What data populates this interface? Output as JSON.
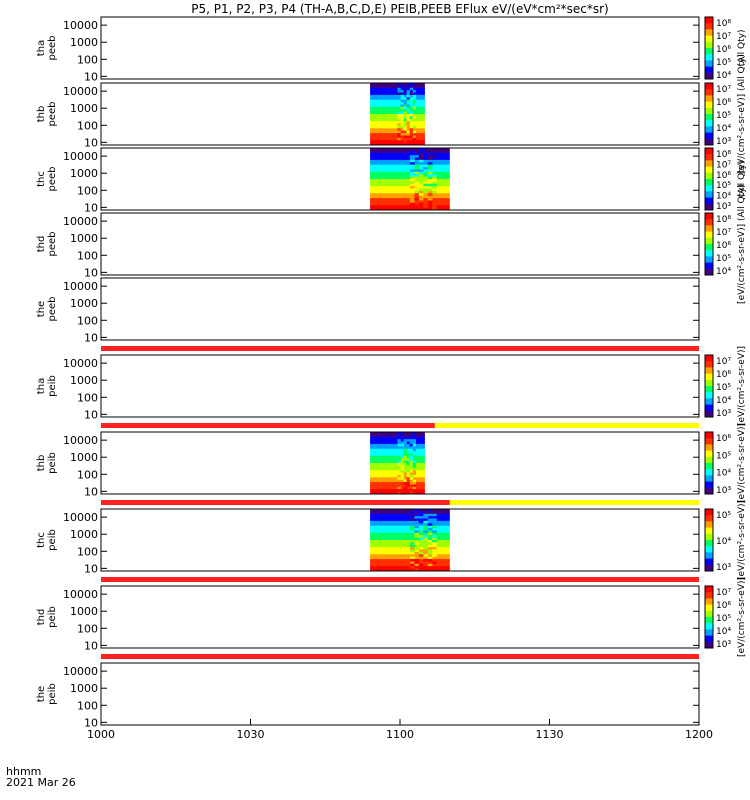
{
  "title": "P5, P1, P2, P3, P4 (TH-A,B,C,D,E) PEIB,PEEB EFlux eV/(eV*cm²*sec*sr)",
  "x_axis": {
    "label_lines": [
      "hhmm",
      "2021 Mar 26"
    ],
    "ticks": [
      "1000",
      "1030",
      "1100",
      "1130",
      "1200"
    ]
  },
  "colors": {
    "flag_red": "#ff2020",
    "flag_yellow": "#ffff00",
    "colormap": [
      "#40007f",
      "#0000ff",
      "#00a0ff",
      "#00ffff",
      "#00ff60",
      "#a0ff00",
      "#ffff00",
      "#ffa000",
      "#ff3000",
      "#ff0000"
    ]
  },
  "chart_data": {
    "type": "heatmap",
    "x_range_minutes_after_1000": [
      0,
      120
    ],
    "y_scale": "log",
    "y_range_eV": [
      7,
      30000
    ],
    "y_ticks": [
      "10000",
      "1000",
      "100",
      "10"
    ],
    "panels": [
      {
        "name": "tha peeb",
        "y_ticks": [
          "10000",
          "1000",
          "100",
          "10"
        ],
        "data_span_min": null,
        "colorbar": [
          "10⁸",
          "10⁷",
          "10⁶",
          "10⁵",
          "10⁴"
        ],
        "colorbar_label": "(All Qty)"
      },
      {
        "name": "thb peeb",
        "y_ticks": [
          "10000",
          "1000",
          "100",
          "10"
        ],
        "data_span_min": [
          54,
          65
        ],
        "colorbar": [
          "10⁷",
          "10⁶",
          "10⁵",
          "10⁴",
          "10³"
        ],
        "colorbar_label": "[eV/(cm²-s-sr-eV)] (All Qty)"
      },
      {
        "name": "thc peeb",
        "y_ticks": [
          "10000",
          "1000",
          "100",
          "10"
        ],
        "data_span_min": [
          54,
          70
        ],
        "colorbar": [
          "10⁸",
          "10⁷",
          "10⁶",
          "10⁵",
          "10⁴",
          "10³"
        ],
        "colorbar_label": "(All Qty)"
      },
      {
        "name": "thd peeb",
        "y_ticks": [
          "10000",
          "1000",
          "100",
          "10"
        ],
        "data_span_min": null,
        "colorbar": [
          "10⁸",
          "10⁷",
          "10⁶",
          "10⁵",
          "10⁴"
        ],
        "colorbar_label": "[eV/(cm²-s-sr-eV)] (All Qty)"
      },
      {
        "name": "the peeb",
        "y_ticks": [
          "10000",
          "1000",
          "100",
          "10"
        ],
        "data_span_min": null,
        "colorbar": [],
        "colorbar_label": ""
      },
      {
        "name": "tha peib",
        "y_ticks": [
          "10000",
          "1000",
          "100",
          "10"
        ],
        "data_span_min": null,
        "flag_above": {
          "red": [
            0,
            120
          ],
          "yellow": null
        },
        "colorbar": [
          "10⁷",
          "10⁶",
          "10⁵",
          "10⁴",
          "10³"
        ],
        "colorbar_label": "[eV/(cm²-s-sr-eV)]"
      },
      {
        "name": "thb peib",
        "y_ticks": [
          "10000",
          "1000",
          "100",
          "10"
        ],
        "data_span_min": [
          54,
          65
        ],
        "flag_above": {
          "red": [
            0,
            67
          ],
          "yellow": [
            67,
            120
          ]
        },
        "colorbar": [
          "10⁶",
          "10⁵",
          "10⁴",
          "10³"
        ],
        "colorbar_label": "[eV/(cm²-s-sr-eV)]"
      },
      {
        "name": "thc peib",
        "y_ticks": [
          "10000",
          "1000",
          "100",
          "10"
        ],
        "data_span_min": [
          54,
          70
        ],
        "flag_above": {
          "red": [
            0,
            70
          ],
          "yellow": [
            70,
            120
          ]
        },
        "colorbar": [
          "10⁵",
          "10⁴",
          "10³"
        ],
        "colorbar_label": "[eV/(cm²-s-sr-eV)]"
      },
      {
        "name": "thd peib",
        "y_ticks": [
          "10000",
          "1000",
          "100",
          "10"
        ],
        "data_span_min": null,
        "flag_above": {
          "red": [
            0,
            120
          ],
          "yellow": null
        },
        "colorbar": [
          "10⁷",
          "10⁶",
          "10⁵",
          "10⁴",
          "10³"
        ],
        "colorbar_label": "[eV/(cm²-s-sr-eV)]"
      },
      {
        "name": "the peib",
        "y_ticks": [
          "10000",
          "1000",
          "100",
          "10"
        ],
        "data_span_min": null,
        "flag_above": {
          "red": [
            0,
            120
          ],
          "yellow": null
        },
        "colorbar": [],
        "colorbar_label": ""
      }
    ]
  }
}
